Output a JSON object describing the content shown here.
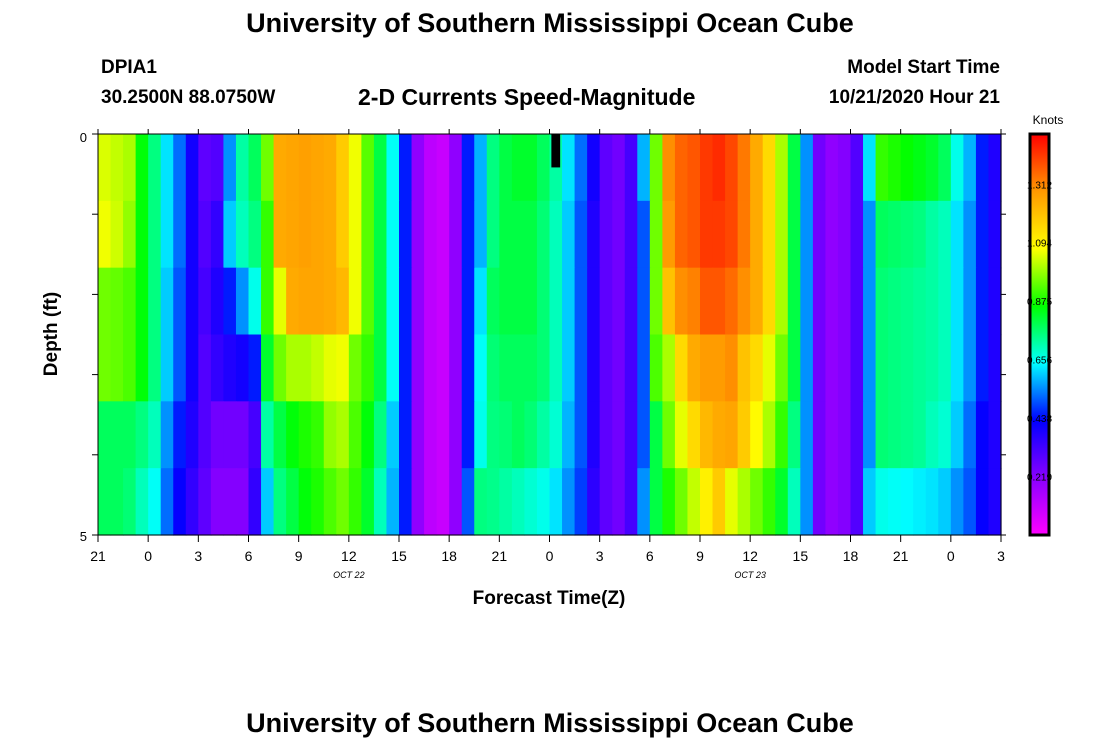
{
  "header": {
    "title": "University of Southern Mississippi Ocean Cube",
    "footer_title": "University of Southern Mississippi Ocean Cube",
    "station": "DPIA1",
    "location": "30.2500N 88.0750W",
    "product": "2-D Currents Speed-Magnitude",
    "model_start_label": "Model Start Time",
    "model_start_value": "10/21/2020 Hour 21"
  },
  "chart_data": {
    "type": "heatmap",
    "title": "2-D Currents Speed-Magnitude",
    "xlabel": "Forecast Time(Z)",
    "ylabel": "Depth (ft)",
    "y_ticks": [
      "0",
      "5"
    ],
    "ylim": [
      0,
      5
    ],
    "x_ticks": [
      "21",
      "0",
      "3",
      "6",
      "9",
      "12",
      "15",
      "18",
      "21",
      "0",
      "3",
      "6",
      "9",
      "12",
      "15",
      "18",
      "21",
      "0",
      "3"
    ],
    "date_labels": [
      {
        "text": "OCT 22",
        "at_hour": 15
      },
      {
        "text": "OCT 23",
        "at_hour": 39
      }
    ],
    "hours_span": 54,
    "colorbar": {
      "unit": "Knots",
      "min": 0.0,
      "max": 1.5,
      "ticks": [
        "0.219",
        "0.438",
        "0.656",
        "0.875",
        "1.094",
        "1.312"
      ]
    },
    "rows": [
      [
        1.04,
        1.02,
        1.0,
        0.85,
        0.75,
        0.62,
        0.52,
        0.4,
        0.28,
        0.3,
        0.55,
        0.72,
        0.78,
        0.95,
        1.25,
        1.26,
        1.27,
        1.26,
        1.25,
        1.18,
        1.06,
        0.93,
        0.8,
        0.65,
        0.45,
        0.2,
        0.12,
        0.1,
        0.2,
        0.45,
        0.58,
        0.75,
        0.8,
        0.82,
        0.82,
        0.78,
        0.72,
        0.62,
        0.52,
        0.4,
        0.28,
        0.25,
        0.32,
        0.58,
        0.95,
        1.3,
        1.36,
        1.38,
        1.42,
        1.44,
        1.4,
        1.33,
        1.25,
        1.15,
        1.0,
        0.8,
        0.55,
        0.25,
        0.2,
        0.22,
        0.3,
        0.62,
        0.9,
        0.88,
        0.86,
        0.84,
        0.82,
        0.78,
        0.66,
        0.58,
        0.45,
        0.38
      ],
      [
        1.06,
        1.03,
        0.98,
        0.85,
        0.75,
        0.62,
        0.52,
        0.4,
        0.3,
        0.35,
        0.6,
        0.7,
        0.75,
        0.9,
        1.25,
        1.26,
        1.27,
        1.26,
        1.25,
        1.18,
        1.06,
        0.93,
        0.8,
        0.65,
        0.45,
        0.2,
        0.12,
        0.1,
        0.2,
        0.45,
        0.58,
        0.75,
        0.8,
        0.8,
        0.8,
        0.76,
        0.7,
        0.6,
        0.5,
        0.38,
        0.28,
        0.25,
        0.32,
        0.5,
        0.95,
        1.28,
        1.36,
        1.38,
        1.42,
        1.42,
        1.4,
        1.33,
        1.25,
        1.15,
        1.0,
        0.8,
        0.55,
        0.25,
        0.2,
        0.22,
        0.3,
        0.55,
        0.78,
        0.77,
        0.76,
        0.75,
        0.72,
        0.7,
        0.62,
        0.55,
        0.45,
        0.38
      ],
      [
        0.95,
        0.94,
        0.92,
        0.85,
        0.75,
        0.6,
        0.5,
        0.4,
        0.32,
        0.38,
        0.45,
        0.55,
        0.66,
        0.9,
        1.05,
        1.25,
        1.26,
        1.26,
        1.25,
        1.22,
        1.06,
        0.93,
        0.8,
        0.65,
        0.45,
        0.2,
        0.12,
        0.1,
        0.2,
        0.45,
        0.62,
        0.78,
        0.8,
        0.8,
        0.8,
        0.76,
        0.7,
        0.6,
        0.5,
        0.38,
        0.28,
        0.25,
        0.32,
        0.5,
        0.95,
        1.2,
        1.3,
        1.32,
        1.38,
        1.38,
        1.35,
        1.3,
        1.25,
        1.15,
        1.0,
        0.8,
        0.55,
        0.25,
        0.2,
        0.22,
        0.3,
        0.55,
        0.76,
        0.75,
        0.74,
        0.73,
        0.72,
        0.7,
        0.62,
        0.55,
        0.45,
        0.38
      ],
      [
        0.95,
        0.94,
        0.92,
        0.85,
        0.75,
        0.6,
        0.5,
        0.4,
        0.3,
        0.35,
        0.38,
        0.4,
        0.45,
        0.82,
        0.95,
        1.0,
        1.0,
        1.02,
        1.05,
        1.06,
        0.95,
        0.9,
        0.8,
        0.65,
        0.45,
        0.2,
        0.12,
        0.1,
        0.2,
        0.45,
        0.65,
        0.76,
        0.78,
        0.78,
        0.78,
        0.76,
        0.7,
        0.6,
        0.5,
        0.38,
        0.28,
        0.25,
        0.32,
        0.5,
        0.92,
        1.0,
        1.15,
        1.25,
        1.28,
        1.28,
        1.3,
        1.2,
        1.15,
        1.05,
        0.95,
        0.8,
        0.55,
        0.25,
        0.2,
        0.22,
        0.3,
        0.55,
        0.76,
        0.75,
        0.74,
        0.73,
        0.72,
        0.7,
        0.62,
        0.55,
        0.45,
        0.38
      ],
      [
        0.78,
        0.78,
        0.78,
        0.75,
        0.7,
        0.55,
        0.45,
        0.38,
        0.3,
        0.25,
        0.25,
        0.25,
        0.32,
        0.72,
        0.8,
        0.85,
        0.88,
        0.9,
        0.98,
        1.0,
        0.92,
        0.85,
        0.75,
        0.6,
        0.45,
        0.2,
        0.12,
        0.1,
        0.2,
        0.45,
        0.66,
        0.75,
        0.76,
        0.78,
        0.76,
        0.72,
        0.68,
        0.58,
        0.5,
        0.38,
        0.28,
        0.25,
        0.32,
        0.5,
        0.8,
        0.95,
        1.05,
        1.15,
        1.22,
        1.25,
        1.26,
        1.18,
        1.08,
        1.0,
        0.9,
        0.75,
        0.55,
        0.25,
        0.2,
        0.22,
        0.3,
        0.55,
        0.76,
        0.75,
        0.74,
        0.73,
        0.7,
        0.68,
        0.6,
        0.52,
        0.42,
        0.38
      ],
      [
        0.78,
        0.78,
        0.76,
        0.7,
        0.65,
        0.52,
        0.42,
        0.35,
        0.28,
        0.22,
        0.22,
        0.22,
        0.35,
        0.6,
        0.75,
        0.8,
        0.85,
        0.88,
        0.92,
        0.95,
        0.9,
        0.82,
        0.7,
        0.58,
        0.45,
        0.2,
        0.12,
        0.1,
        0.2,
        0.5,
        0.75,
        0.74,
        0.72,
        0.7,
        0.68,
        0.66,
        0.62,
        0.55,
        0.48,
        0.36,
        0.28,
        0.25,
        0.32,
        0.55,
        0.8,
        0.88,
        0.95,
        1.02,
        1.1,
        1.18,
        1.05,
        1.0,
        0.95,
        0.9,
        0.82,
        0.7,
        0.55,
        0.25,
        0.2,
        0.22,
        0.3,
        0.6,
        0.66,
        0.65,
        0.64,
        0.63,
        0.62,
        0.6,
        0.55,
        0.5,
        0.42,
        0.38
      ]
    ],
    "missing": [
      {
        "row": 0,
        "col": 36,
        "label": "no data"
      }
    ]
  },
  "colors": {
    "background": "#ffffff",
    "text": "#000000",
    "missing": "#000000",
    "ramp": [
      "#ff00ff",
      "#8800ff",
      "#0000ff",
      "#00ffff",
      "#00ff00",
      "#ffff00",
      "#ff9900",
      "#ff0000"
    ]
  }
}
